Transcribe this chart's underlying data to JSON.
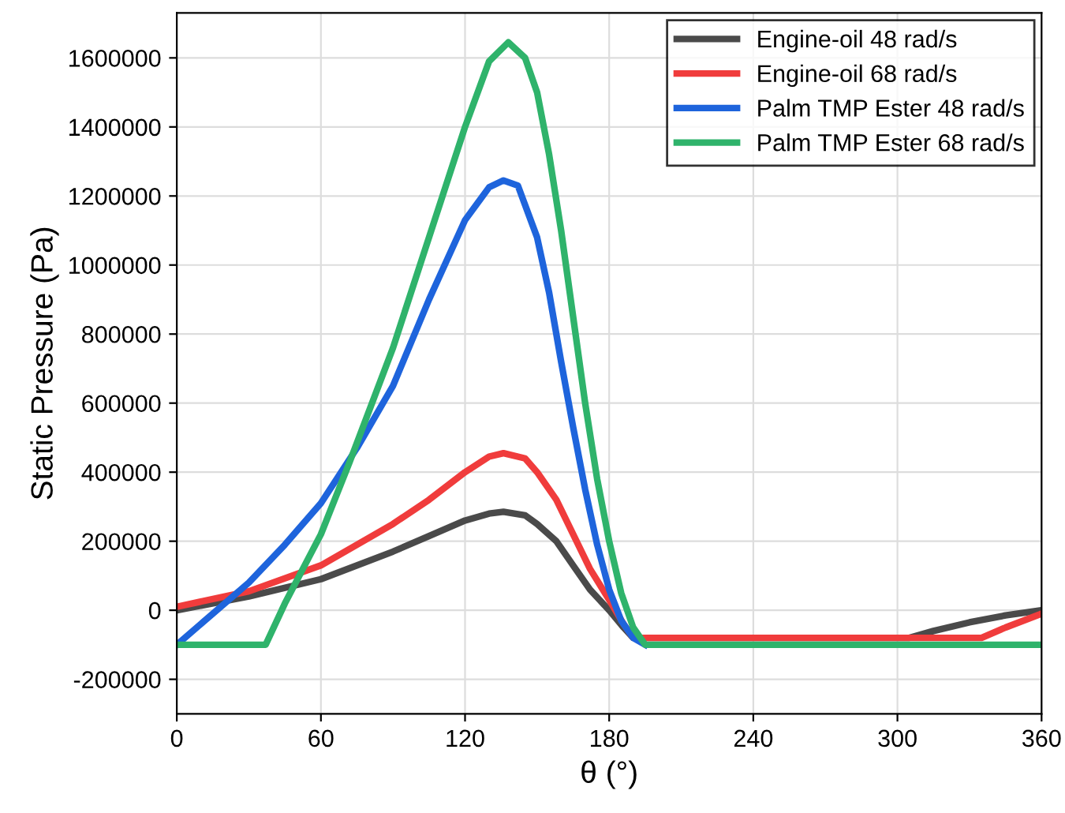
{
  "chart_data": {
    "type": "line",
    "xlabel": "θ (°)",
    "ylabel": "Static Pressure (Pa)",
    "xlim": [
      0,
      360
    ],
    "xticks": [
      0,
      60,
      120,
      180,
      240,
      300,
      360
    ],
    "ylim": [
      -300000,
      1730000
    ],
    "yticks": [
      -200000,
      0,
      200000,
      400000,
      600000,
      800000,
      1000000,
      1200000,
      1400000,
      1600000
    ],
    "grid": true,
    "legend": "top right",
    "line_style": "solid",
    "marker": "none",
    "series": [
      {
        "name": "Engine-oil 48 rad/s",
        "color": "#4a4a4a",
        "x": [
          0,
          30,
          60,
          90,
          105,
          120,
          130,
          136,
          145,
          150,
          158,
          165,
          172,
          180,
          186,
          190,
          305,
          315,
          330,
          345,
          360
        ],
        "values": [
          0,
          40000,
          90000,
          170000,
          215000,
          260000,
          280000,
          285000,
          275000,
          250000,
          200000,
          130000,
          60000,
          0,
          -50000,
          -80000,
          -80000,
          -60000,
          -35000,
          -15000,
          0
        ]
      },
      {
        "name": "Engine-oil 68 rad/s",
        "color": "#f03c3c",
        "x": [
          0,
          30,
          60,
          90,
          105,
          120,
          130,
          136,
          145,
          150,
          158,
          165,
          172,
          180,
          186,
          190,
          200,
          250,
          300,
          335,
          345,
          360
        ],
        "values": [
          10000,
          55000,
          130000,
          250000,
          320000,
          400000,
          445000,
          455000,
          440000,
          400000,
          320000,
          220000,
          120000,
          30000,
          -40000,
          -80000,
          -80000,
          -80000,
          -80000,
          -80000,
          -50000,
          -10000
        ]
      },
      {
        "name": "Palm TMP Ester 48 rad/s",
        "color": "#1e64dc",
        "x": [
          0,
          10,
          20,
          30,
          45,
          60,
          75,
          90,
          105,
          120,
          130,
          136,
          142,
          150,
          155,
          160,
          165,
          170,
          175,
          180,
          185,
          190,
          195
        ],
        "values": [
          -100000,
          -40000,
          20000,
          80000,
          190000,
          310000,
          470000,
          650000,
          900000,
          1130000,
          1225000,
          1245000,
          1230000,
          1080000,
          920000,
          720000,
          530000,
          350000,
          190000,
          60000,
          -30000,
          -80000,
          -100000
        ]
      },
      {
        "name": "Palm TMP Ester 68 rad/s",
        "color": "#2fb36b",
        "x": [
          0,
          37,
          45,
          60,
          72,
          90,
          105,
          120,
          130,
          138,
          145,
          150,
          155,
          160,
          165,
          170,
          175,
          180,
          185,
          190,
          195,
          250,
          300,
          360
        ],
        "values": [
          -100000,
          -100000,
          20000,
          220000,
          430000,
          760000,
          1080000,
          1400000,
          1590000,
          1645000,
          1600000,
          1500000,
          1320000,
          1100000,
          850000,
          600000,
          380000,
          200000,
          50000,
          -50000,
          -100000,
          -100000,
          -100000,
          -100000
        ]
      }
    ]
  }
}
